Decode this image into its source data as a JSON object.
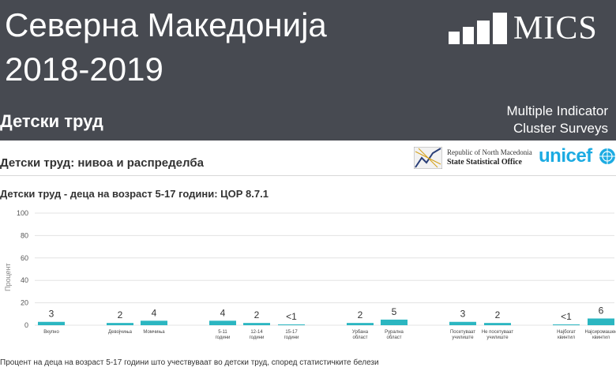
{
  "header": {
    "country": "Северна Македонија",
    "years": "2018-2019",
    "report_title": "Детски труд",
    "logo_text": "MICS",
    "subtitle_line1": "Multiple Indicator",
    "subtitle_line2": "Cluster Surveys"
  },
  "section": {
    "title": "Детски труд: нивоа и распределба"
  },
  "partners": {
    "sso_line1": "Republic of North Macedonia",
    "sso_line2": "State Statistical Office",
    "unicef": "unicef"
  },
  "footnote": "Процент на деца на возраст 5-17 години што учествуваат во детски труд, според статистичките белези",
  "colors": {
    "banner": "#474a51",
    "bar": "#2bb6c1",
    "unicef": "#1cabe2"
  },
  "chart_data": {
    "type": "bar",
    "title": "Детски труд - деца на возраст 5-17 години: ЦОР 8.7.1",
    "ylabel": "Процент",
    "ylim": [
      0,
      100
    ],
    "yticks": [
      0,
      20,
      40,
      60,
      80,
      100
    ],
    "grid": true,
    "categories": [
      [
        "Вкупно"
      ],
      [
        "Девојчиња"
      ],
      [
        "Момчиња"
      ],
      [
        "5-11",
        "години"
      ],
      [
        "12-14",
        "години"
      ],
      [
        "15-17",
        "години"
      ],
      [
        "Урбана",
        "област"
      ],
      [
        "Рурална",
        "област"
      ],
      [
        "Посетуваат",
        "училиште"
      ],
      [
        "Не посетуваат",
        "училиште"
      ],
      [
        "Најбогат",
        "квинтил"
      ],
      [
        "Најсиромашен",
        "квинтил"
      ]
    ],
    "values": [
      3,
      2,
      4,
      4,
      2,
      0.5,
      2,
      5,
      3,
      2,
      0.5,
      6
    ],
    "labels": [
      "3",
      "2",
      "4",
      "4",
      "2",
      "<1",
      "2",
      "5",
      "3",
      "2",
      "<1",
      "6"
    ]
  }
}
